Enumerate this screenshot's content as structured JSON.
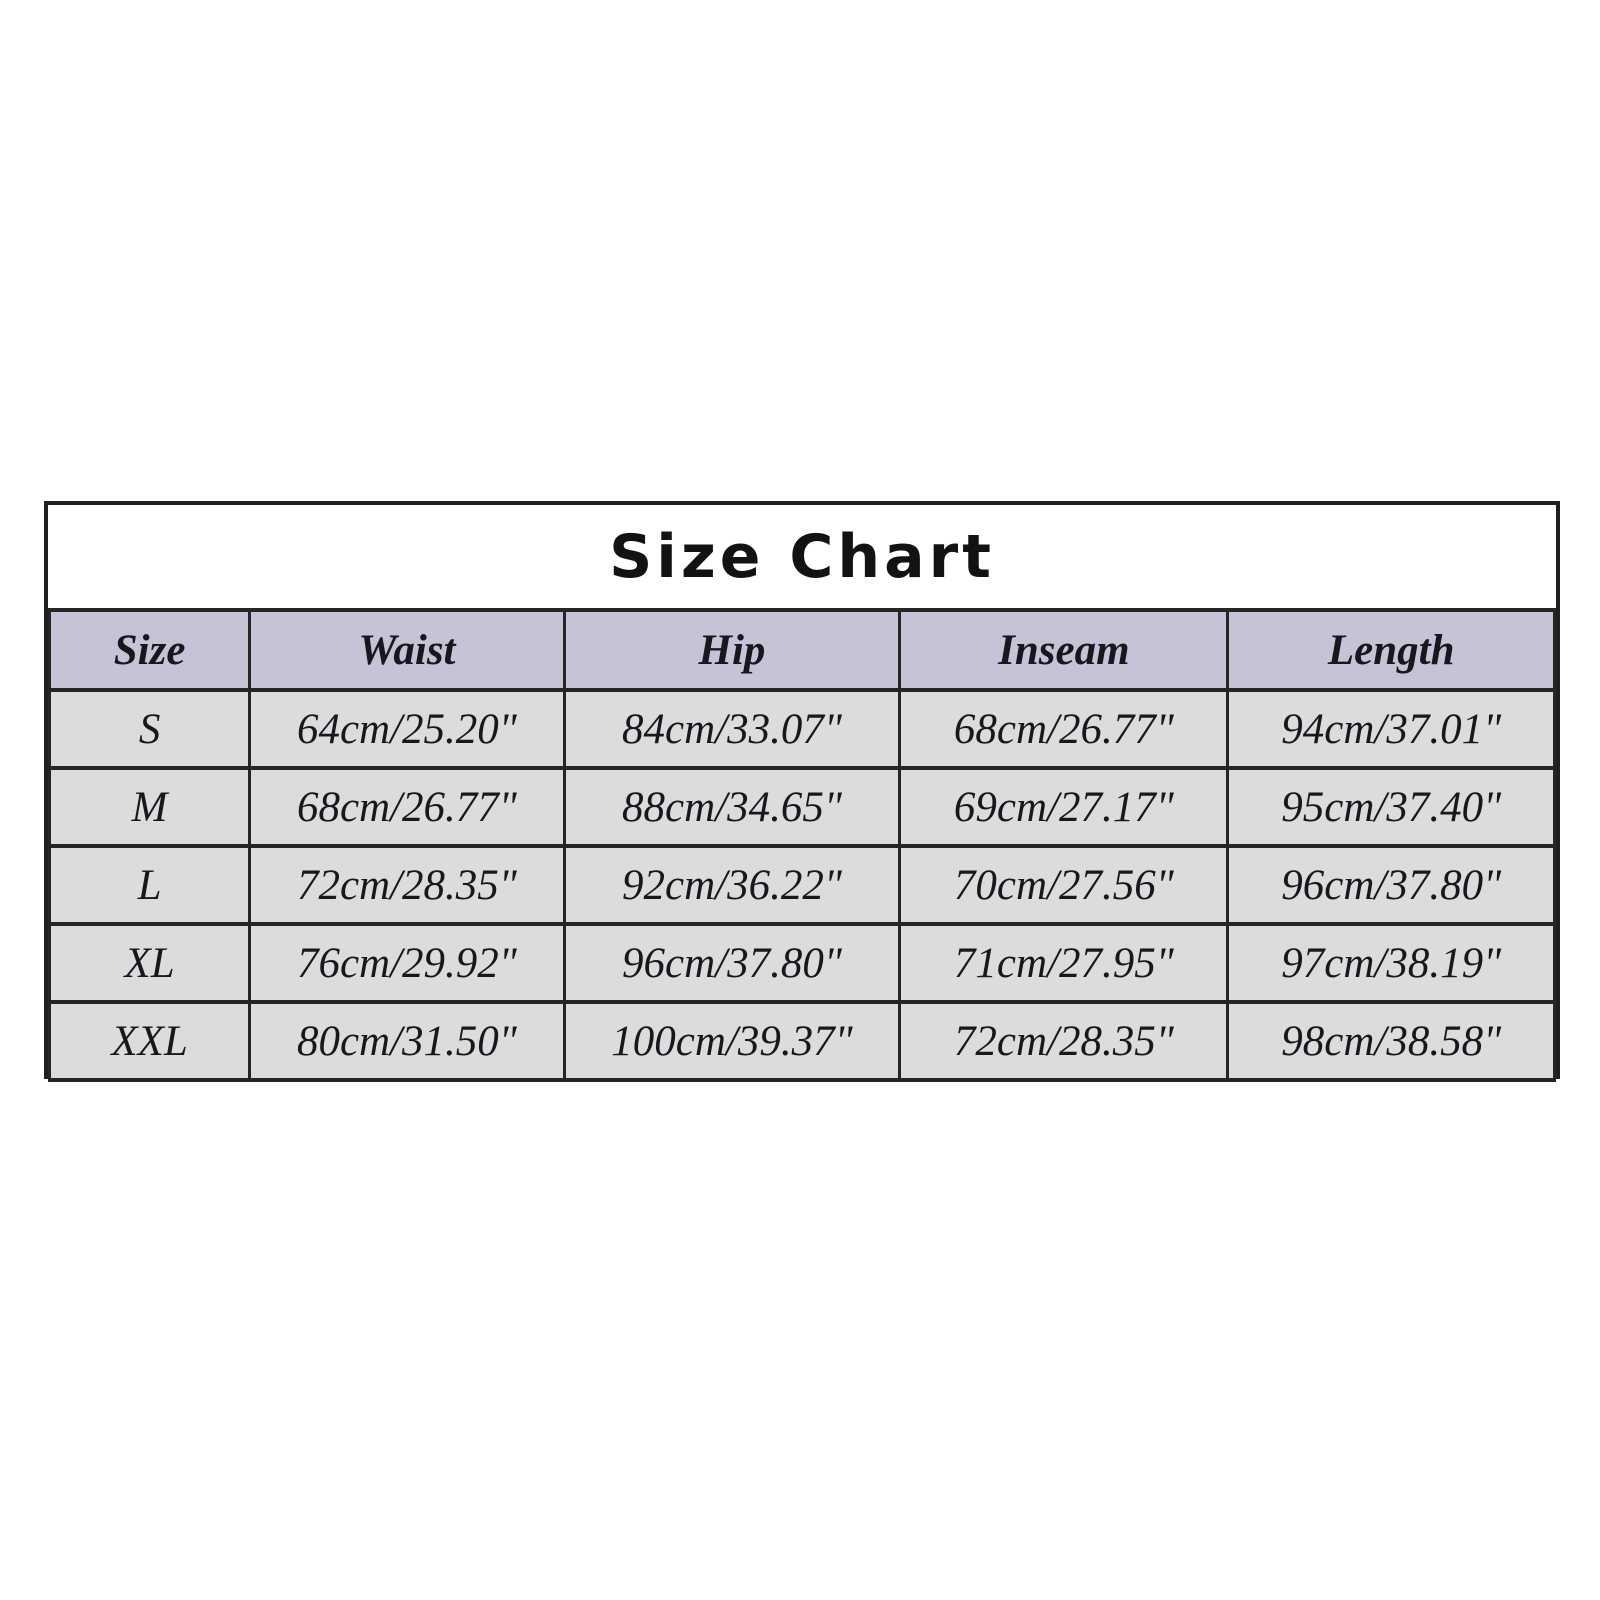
{
  "title": "Size Chart",
  "colors": {
    "page_bg": "#ffffff",
    "title_bg": "#ffffff",
    "header_bg": "#c7c3d7",
    "row_bg": "#dcdcdc",
    "border": "#1f1f1f",
    "text": "#17171d"
  },
  "table": {
    "headers": [
      "Size",
      "Waist",
      "Hip",
      "Inseam",
      "Length"
    ],
    "rows": [
      [
        "S",
        "64cm/25.20\"",
        "84cm/33.07\"",
        "68cm/26.77\"",
        "94cm/37.01\""
      ],
      [
        "M",
        "68cm/26.77\"",
        "88cm/34.65\"",
        "69cm/27.17\"",
        "95cm/37.40\""
      ],
      [
        "L",
        "72cm/28.35\"",
        "92cm/36.22\"",
        "70cm/27.56\"",
        "96cm/37.80\""
      ],
      [
        "XL",
        "76cm/29.92\"",
        "96cm/37.80\"",
        "71cm/27.95\"",
        "97cm/38.19\""
      ],
      [
        "XXL",
        "80cm/31.50\"",
        "100cm/39.37\"",
        "72cm/28.35\"",
        "98cm/38.58\""
      ]
    ]
  }
}
